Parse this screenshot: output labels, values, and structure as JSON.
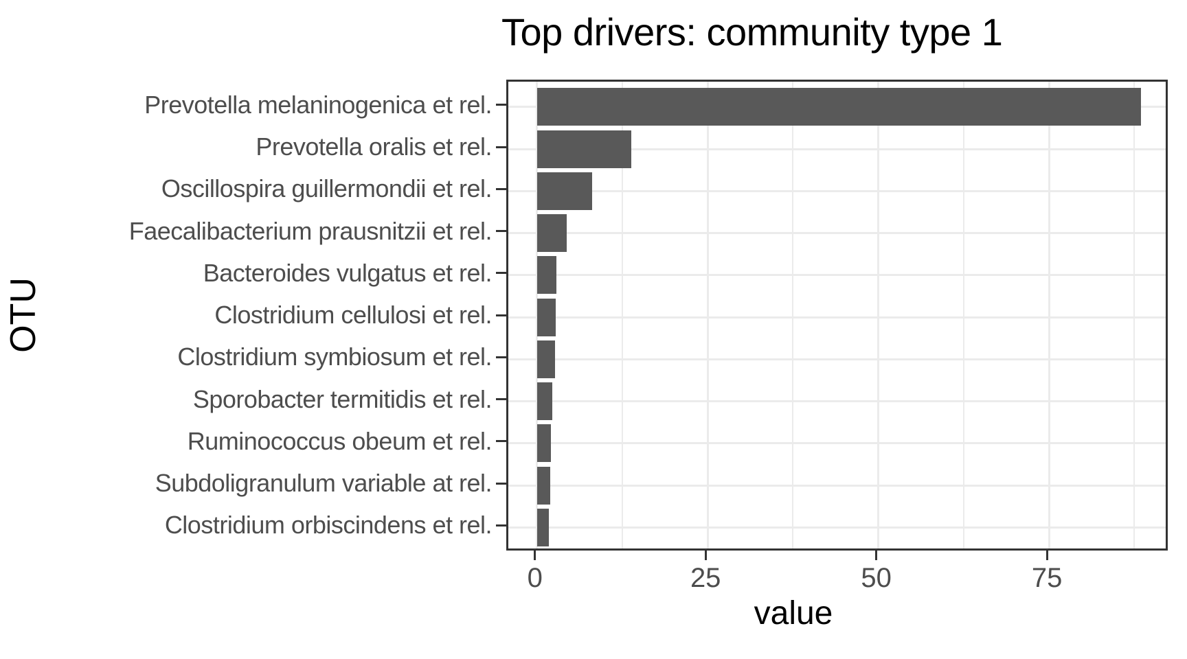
{
  "chart_data": {
    "type": "bar",
    "orientation": "horizontal",
    "title": "Top drivers: community type 1",
    "xlabel": "value",
    "ylabel": "OTU",
    "categories": [
      "Prevotella melaninogenica et rel.",
      "Prevotella oralis et rel.",
      "Oscillospira guillermondii et rel.",
      "Faecalibacterium prausnitzii et rel.",
      "Bacteroides vulgatus et rel.",
      "Clostridium cellulosi et rel.",
      "Clostridium symbiosum et rel.",
      "Sporobacter termitidis et rel.",
      "Ruminococcus obeum et rel.",
      "Subdoligranulum variable at rel.",
      "Clostridium orbiscindens et rel."
    ],
    "values": [
      88.5,
      13.8,
      8.1,
      4.4,
      2.8,
      2.7,
      2.6,
      2.2,
      2.0,
      1.9,
      1.7
    ],
    "x_ticks": [
      0,
      25,
      50,
      75
    ],
    "x_minor_ticks": [
      12.5,
      37.5,
      62.5,
      87.5
    ],
    "xlim": [
      -4.2,
      92.7
    ],
    "grid": true,
    "legend": "none",
    "colors": {
      "bar": "#595959",
      "panel_border": "#333333",
      "gridline": "#ebebeb",
      "tick": "#333333",
      "tick_label": "#4d4d4d",
      "title": "#000000"
    }
  }
}
